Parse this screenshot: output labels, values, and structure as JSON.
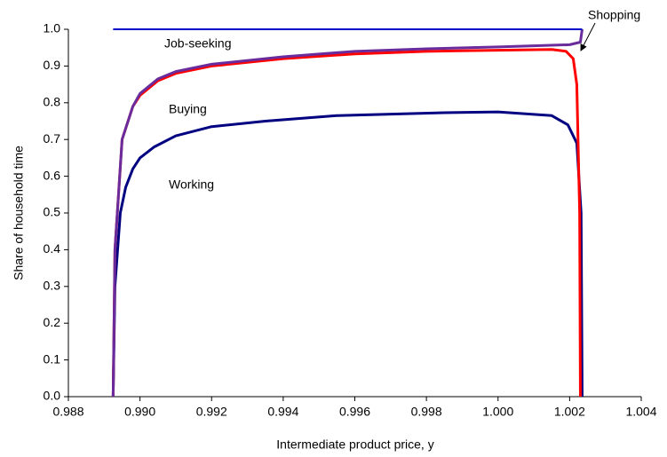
{
  "chart_data": {
    "type": "line",
    "x_label": "Intermediate product price, y",
    "y_label": "Share of household time",
    "xlim": [
      0.988,
      1.004
    ],
    "xticks": [
      {
        "value": 0.988,
        "label": "0.988"
      },
      {
        "value": 0.99,
        "label": "0.990"
      },
      {
        "value": 0.992,
        "label": "0.992"
      },
      {
        "value": 0.994,
        "label": "0.994"
      },
      {
        "value": 0.996,
        "label": "0.996"
      },
      {
        "value": 0.998,
        "label": "0.998"
      },
      {
        "value": 1.0,
        "label": "1.000"
      },
      {
        "value": 1.002,
        "label": "1.002"
      },
      {
        "value": 1.004,
        "label": "1.004"
      }
    ],
    "ylim": [
      0,
      1
    ],
    "yticks": [
      {
        "value": 0,
        "label": "0.0"
      },
      0.1,
      0.2,
      0.3,
      0.4,
      0.5,
      0.6,
      0.7,
      0.8,
      0.9,
      {
        "value": 1,
        "label": "1.0"
      }
    ],
    "grid": false,
    "series": [
      {
        "name": "Working",
        "color": "#000080",
        "x": [
          0.98925,
          0.9893,
          0.98945,
          0.9896,
          0.9898,
          0.99,
          0.9904,
          0.991,
          0.992,
          0.9935,
          0.9955,
          0.9985,
          1.0,
          1.0015,
          1.00195,
          1.0022,
          1.00232,
          1.00235
        ],
        "values": [
          0,
          0.3,
          0.5,
          0.57,
          0.62,
          0.65,
          0.68,
          0.71,
          0.735,
          0.75,
          0.765,
          0.773,
          0.775,
          0.765,
          0.74,
          0.69,
          0.5,
          0
        ]
      },
      {
        "name": "Buying",
        "color": "#ff0000",
        "x": [
          0.98925,
          0.9893,
          0.9895,
          0.9898,
          0.99,
          0.9905,
          0.991,
          0.992,
          0.994,
          0.996,
          0.998,
          1.0,
          1.0015,
          1.0019,
          1.0021,
          1.0022,
          1.00228,
          1.0023
        ],
        "values": [
          0,
          0.4,
          0.7,
          0.79,
          0.82,
          0.86,
          0.88,
          0.9,
          0.92,
          0.933,
          0.94,
          0.943,
          0.945,
          0.94,
          0.92,
          0.85,
          0.5,
          0
        ]
      },
      {
        "name": "Job-seeking",
        "color": "#6a2c9c",
        "x": [
          0.98925,
          0.9893,
          0.9895,
          0.9898,
          0.99,
          0.9905,
          0.991,
          0.992,
          0.994,
          0.996,
          0.998,
          1.0,
          1.002,
          1.0023,
          1.00235
        ],
        "values": [
          0,
          0.4,
          0.7,
          0.79,
          0.825,
          0.865,
          0.885,
          0.905,
          0.925,
          0.94,
          0.947,
          0.952,
          0.958,
          0.965,
          1.0
        ]
      },
      {
        "name": "Shopping",
        "color": "#0000cc",
        "x": [
          0.98925,
          1.00235
        ],
        "values": [
          1.0,
          1.0
        ]
      }
    ]
  }
}
